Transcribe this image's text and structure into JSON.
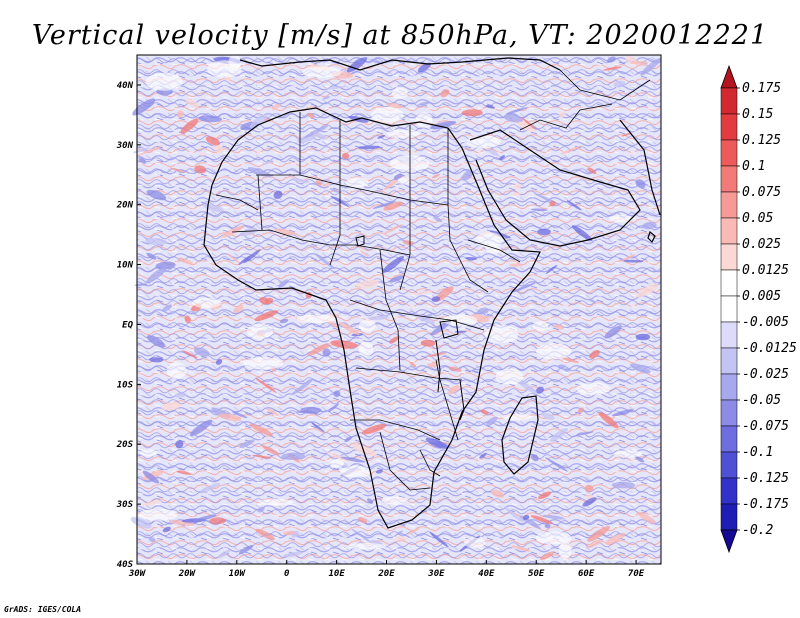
{
  "title": "Vertical velocity [m/s] at 850hPa, VT: 2020012221",
  "credit": "GrADS: IGES/COLA",
  "map": {
    "projection": "latlon",
    "lon_range": [
      -30,
      75
    ],
    "lat_range": [
      -40,
      45
    ],
    "lon_ticks": [
      {
        "v": -30,
        "label": "30W"
      },
      {
        "v": -20,
        "label": "20W"
      },
      {
        "v": -10,
        "label": "10W"
      },
      {
        "v": 0,
        "label": "0"
      },
      {
        "v": 10,
        "label": "10E"
      },
      {
        "v": 20,
        "label": "20E"
      },
      {
        "v": 30,
        "label": "30E"
      },
      {
        "v": 40,
        "label": "40E"
      },
      {
        "v": 50,
        "label": "50E"
      },
      {
        "v": 60,
        "label": "60E"
      },
      {
        "v": 70,
        "label": "70E"
      }
    ],
    "lat_ticks": [
      {
        "v": 40,
        "label": "40N"
      },
      {
        "v": 30,
        "label": "30N"
      },
      {
        "v": 20,
        "label": "20N"
      },
      {
        "v": 10,
        "label": "10N"
      },
      {
        "v": 0,
        "label": "EQ"
      },
      {
        "v": -10,
        "label": "10S"
      },
      {
        "v": -20,
        "label": "20S"
      },
      {
        "v": -30,
        "label": "30S"
      },
      {
        "v": -40,
        "label": "40S"
      }
    ]
  },
  "colorbar": {
    "levels": [
      "0.175",
      "0.15",
      "0.125",
      "0.1",
      "0.075",
      "0.05",
      "0.025",
      "0.0125",
      "0.005",
      "-0.005",
      "-0.0125",
      "-0.025",
      "-0.05",
      "-0.075",
      "-0.1",
      "-0.125",
      "-0.175",
      "-0.2"
    ],
    "colors": [
      "#b4141e",
      "#d22830",
      "#e33c40",
      "#ec5a5a",
      "#f27a78",
      "#f69a96",
      "#f9bab6",
      "#fcd8d4",
      "#ffffff",
      "#ffffff",
      "#dcdcfa",
      "#c4c4f4",
      "#a8a8ee",
      "#8c8ce6",
      "#6e6ee0",
      "#5050d6",
      "#3232c8",
      "#1e1eb4",
      "#140a96"
    ]
  }
}
